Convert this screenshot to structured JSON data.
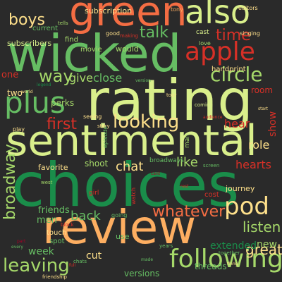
{
  "words": {
    "green": "green",
    "also": "also",
    "boys": "boys",
    "subscription": "subscription",
    "subscribers": "subscribers",
    "wicked": "wicked",
    "apple": "apple",
    "talk": "talk",
    "time": "time",
    "find": "find",
    "movie": "movie",
    "would": "would",
    "one": "one",
    "way": "way",
    "give": "give",
    "close": "close",
    "circle": "circle",
    "rating": "rating",
    "plus": "plus",
    "handprint": "handprint",
    "two": "two",
    "perks": "perks",
    "room": "room",
    "first": "first",
    "looking": "looking",
    "hear": "hear",
    "show": "show",
    "sentimental": "sentimental",
    "role": "role",
    "chat": "chat",
    "like": "like",
    "favorite": "favorite",
    "shoot": "shoot",
    "broadways": "broadways",
    "hearts": "hearts",
    "broadway": "broadway",
    "choices": "choices",
    "cost": "cost",
    "journey": "journey",
    "pod": "pod",
    "friends": "friends",
    "back": "back",
    "whatever": "whatever",
    "men": "men",
    "listen": "listen",
    "review": "review",
    "extended": "extended",
    "week": "week",
    "new": "new",
    "leaving": "leaving",
    "following": "following",
    "cut": "cut",
    "great": "great",
    "versions": "versions",
    "threads": "threads",
    "use": "use",
    "touch": "touch",
    "spot": "spot",
    "editors": "editors",
    "tony": "tony",
    "current": "current",
    "tells": "tells",
    "good": "good",
    "singing": "singing",
    "making": "making",
    "love": "love",
    "cast": "cast",
    "seeing": "seeing",
    "story": "story",
    "going": "going",
    "girl": "girl",
    "west": "west",
    "play": "play",
    "years": "years",
    "together": "together",
    "friendship": "friendship",
    "every": "every",
    "tour": "tour",
    "coming": "coming",
    "man": "man",
    "block": "block",
    "chats": "chats",
    "full": "full",
    "screen": "screen",
    "legend": "legend",
    "world": "world",
    "audience": "audience",
    "watch": "watch",
    "episode": "episode",
    "version": "version",
    "cant": "cant",
    "rest": "rest",
    "thing": "thing",
    "part": "part",
    "made": "made",
    "start": "start"
  },
  "colors": {
    "background": "#2a2a2a",
    "palette": [
      "#1a8d4a",
      "#66bd63",
      "#a6d96a",
      "#d9ef8b",
      "#fee08b",
      "#fdae61",
      "#f46d43",
      "#d73027",
      "#a50026"
    ]
  }
}
